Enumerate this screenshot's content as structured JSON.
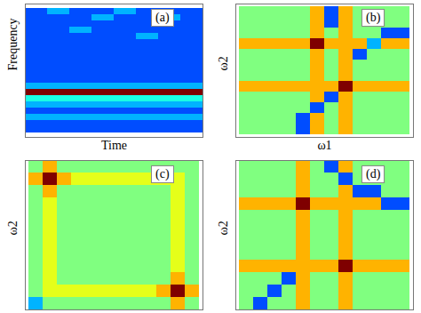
{
  "chart_data": [
    {
      "type": "heatmap",
      "title": "(a)",
      "x_label": "Time",
      "y_label": "Frequency",
      "color": "jet",
      "tick_labels": false,
      "grid": false,
      "zlim": [
        0,
        10
      ],
      "cells": [
        [
          2,
          3,
          2,
          2,
          3,
          2,
          2,
          2
        ],
        [
          2,
          2,
          2,
          3,
          2,
          2,
          3,
          2
        ],
        [
          2,
          2,
          2,
          2,
          2,
          2,
          2,
          2
        ],
        [
          2,
          2,
          3,
          2,
          2,
          2,
          2,
          2
        ],
        [
          2,
          2,
          2,
          2,
          2,
          3,
          2,
          2
        ],
        [
          2,
          2,
          2,
          2,
          2,
          2,
          2,
          2
        ],
        [
          2,
          2,
          2,
          2,
          2,
          2,
          2,
          2
        ],
        [
          2,
          2,
          2,
          2,
          2,
          2,
          2,
          2
        ],
        [
          2,
          2,
          2,
          2,
          2,
          2,
          2,
          2
        ],
        [
          2,
          2,
          2,
          2,
          2,
          2,
          2,
          2
        ],
        [
          2,
          2,
          2,
          2,
          2,
          2,
          2,
          2
        ],
        [
          2,
          2,
          2,
          2,
          2,
          2,
          2,
          2
        ],
        [
          3,
          3,
          3,
          3,
          3,
          3,
          3,
          3
        ],
        [
          10,
          10,
          10,
          10,
          10,
          10,
          10,
          10
        ],
        [
          4,
          4,
          4,
          4,
          4,
          4,
          4,
          4
        ],
        [
          3,
          3,
          3,
          3,
          3,
          3,
          3,
          3
        ],
        [
          2,
          2,
          2,
          2,
          2,
          2,
          2,
          2
        ],
        [
          3,
          3,
          3,
          3,
          3,
          3,
          3,
          3
        ],
        [
          2,
          2,
          2,
          2,
          2,
          2,
          2,
          2
        ],
        [
          2,
          2,
          2,
          2,
          2,
          2,
          2,
          2
        ]
      ]
    },
    {
      "type": "heatmap",
      "title": "(b)",
      "x_label": "ω1",
      "y_label": "ω2",
      "color": "jet",
      "tick_labels": false,
      "grid": false,
      "zlim": [
        0,
        10
      ],
      "cells": [
        [
          5,
          5,
          5,
          5,
          5,
          7,
          2,
          7,
          5,
          5,
          5,
          5
        ],
        [
          5,
          5,
          5,
          5,
          5,
          7,
          2,
          7,
          5,
          5,
          5,
          5
        ],
        [
          5,
          5,
          5,
          5,
          5,
          7,
          5,
          7,
          5,
          5,
          2,
          2
        ],
        [
          7,
          7,
          7,
          7,
          7,
          10,
          7,
          7,
          7,
          3,
          7,
          7
        ],
        [
          5,
          5,
          5,
          5,
          5,
          7,
          5,
          7,
          2,
          5,
          5,
          5
        ],
        [
          5,
          5,
          5,
          5,
          5,
          7,
          5,
          7,
          5,
          5,
          5,
          5
        ],
        [
          5,
          5,
          5,
          5,
          5,
          7,
          5,
          7,
          5,
          5,
          5,
          5
        ],
        [
          7,
          7,
          7,
          7,
          7,
          7,
          7,
          10,
          7,
          7,
          7,
          7
        ],
        [
          5,
          5,
          5,
          5,
          5,
          7,
          2,
          7,
          5,
          5,
          5,
          5
        ],
        [
          5,
          5,
          5,
          5,
          5,
          2,
          5,
          7,
          5,
          5,
          5,
          5
        ],
        [
          5,
          5,
          5,
          5,
          2,
          7,
          5,
          7,
          5,
          5,
          5,
          5
        ],
        [
          5,
          5,
          5,
          5,
          2,
          7,
          5,
          7,
          5,
          5,
          5,
          5
        ]
      ]
    },
    {
      "type": "heatmap",
      "title": "(c)",
      "y_label": "ω2",
      "color": "jet",
      "tick_labels": false,
      "grid": false,
      "zlim": [
        0,
        10
      ],
      "cells": [
        [
          5,
          7,
          5,
          5,
          5,
          5,
          5,
          5,
          5,
          5,
          5,
          5
        ],
        [
          7,
          10,
          7,
          6,
          6,
          6,
          6,
          6,
          6,
          6,
          6,
          5
        ],
        [
          5,
          7,
          5,
          5,
          5,
          5,
          5,
          5,
          5,
          5,
          6,
          5
        ],
        [
          5,
          6,
          5,
          5,
          5,
          5,
          5,
          5,
          5,
          5,
          6,
          5
        ],
        [
          5,
          6,
          5,
          5,
          5,
          5,
          5,
          5,
          5,
          5,
          6,
          5
        ],
        [
          5,
          6,
          5,
          5,
          5,
          5,
          5,
          5,
          5,
          5,
          6,
          5
        ],
        [
          5,
          6,
          5,
          5,
          5,
          5,
          5,
          5,
          5,
          5,
          6,
          5
        ],
        [
          5,
          6,
          5,
          5,
          5,
          5,
          5,
          5,
          5,
          5,
          6,
          5
        ],
        [
          5,
          6,
          5,
          5,
          5,
          5,
          5,
          5,
          5,
          5,
          6,
          5
        ],
        [
          5,
          6,
          5,
          5,
          5,
          5,
          5,
          5,
          5,
          5,
          7,
          5
        ],
        [
          5,
          6,
          6,
          6,
          6,
          6,
          6,
          6,
          6,
          7,
          10,
          7
        ],
        [
          3,
          5,
          5,
          5,
          5,
          5,
          5,
          5,
          5,
          5,
          7,
          5
        ]
      ]
    },
    {
      "type": "heatmap",
      "title": "(d)",
      "y_label": "ω2",
      "color": "jet",
      "tick_labels": false,
      "grid": false,
      "zlim": [
        0,
        10
      ],
      "cells": [
        [
          5,
          5,
          5,
          5,
          7,
          5,
          2,
          7,
          5,
          5,
          5,
          5
        ],
        [
          5,
          5,
          5,
          5,
          7,
          5,
          5,
          2,
          5,
          5,
          5,
          5
        ],
        [
          5,
          5,
          5,
          5,
          7,
          5,
          5,
          7,
          2,
          2,
          5,
          5
        ],
        [
          7,
          7,
          7,
          7,
          10,
          7,
          7,
          7,
          7,
          7,
          2,
          2
        ],
        [
          5,
          5,
          5,
          5,
          7,
          5,
          5,
          7,
          5,
          5,
          5,
          5
        ],
        [
          5,
          5,
          5,
          5,
          7,
          5,
          5,
          7,
          5,
          5,
          5,
          5
        ],
        [
          5,
          5,
          5,
          5,
          7,
          5,
          5,
          7,
          5,
          5,
          5,
          5
        ],
        [
          5,
          5,
          5,
          5,
          7,
          5,
          5,
          7,
          5,
          5,
          5,
          5
        ],
        [
          7,
          7,
          7,
          7,
          7,
          7,
          7,
          10,
          7,
          7,
          7,
          7
        ],
        [
          5,
          5,
          5,
          2,
          7,
          5,
          5,
          7,
          5,
          5,
          5,
          5
        ],
        [
          5,
          5,
          2,
          5,
          7,
          5,
          5,
          7,
          5,
          5,
          5,
          5
        ],
        [
          5,
          2,
          5,
          5,
          7,
          5,
          5,
          7,
          5,
          5,
          5,
          5
        ]
      ]
    }
  ]
}
